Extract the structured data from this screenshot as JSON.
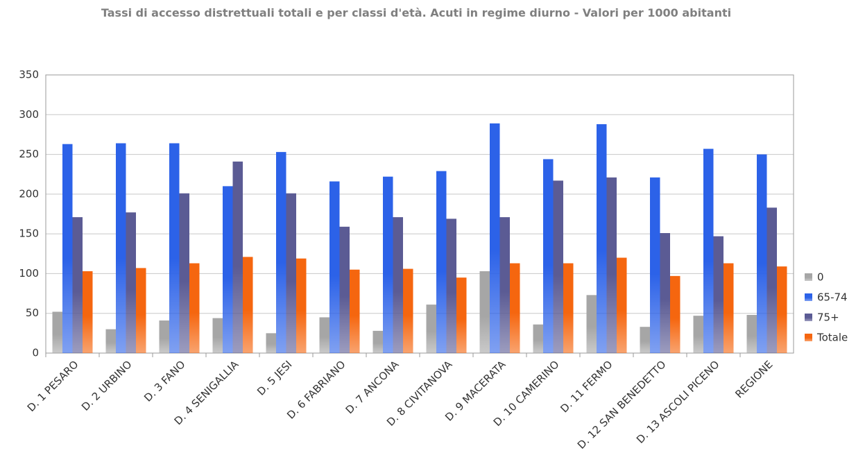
{
  "chart_data": {
    "type": "bar",
    "title": "Tassi di accesso distrettuali totali e per classi d'età. Acuti in regime diurno - Valori per 1000 abitanti",
    "categories": [
      "D. 1 PESARO",
      "D. 2 URBINO",
      "D. 3 FANO",
      "D. 4 SENIGALLIA",
      "D. 5 JESI",
      "D. 6 FABRIANO",
      "D. 7 ANCONA",
      "D. 8 CIVITANOVA",
      "D. 9 MACERATA",
      "D. 10 CAMERINO",
      "D. 11 FERMO",
      "D. 12 SAN BENEDETTO",
      "D. 13 ASCOLI PICENO",
      "REGIONE"
    ],
    "series": [
      {
        "name": "0",
        "color": "#a6a6a6",
        "values": [
          52,
          30,
          41,
          44,
          25,
          45,
          28,
          61,
          103,
          36,
          73,
          33,
          47,
          48
        ]
      },
      {
        "name": "65-74",
        "color": "#2c62e8",
        "values": [
          263,
          264,
          264,
          210,
          253,
          216,
          222,
          229,
          289,
          244,
          288,
          221,
          257,
          250
        ]
      },
      {
        "name": "75+",
        "color": "#5b5b94",
        "values": [
          171,
          177,
          201,
          241,
          201,
          159,
          171,
          169,
          171,
          217,
          221,
          151,
          147,
          183
        ]
      },
      {
        "name": "Totale",
        "color": "#f5660f",
        "values": [
          103,
          107,
          113,
          121,
          119,
          105,
          106,
          95,
          113,
          113,
          120,
          97,
          113,
          109
        ]
      }
    ],
    "ylim": [
      0,
      350
    ],
    "yticks": [
      0,
      50,
      100,
      150,
      200,
      250,
      300,
      350
    ],
    "grid": true,
    "legend": "right"
  }
}
